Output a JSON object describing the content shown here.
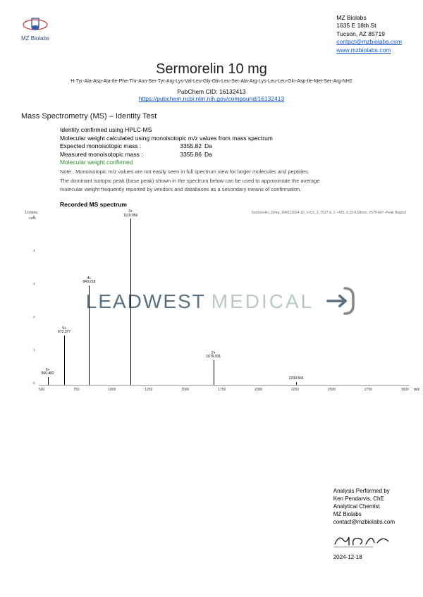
{
  "company": {
    "name": "MZ Biolabs",
    "address1": "1635 E 18th St",
    "address2": "Tucson, AZ 85719",
    "email": "contact@mzbiolabs.com",
    "website": "www.mzbiolabs.com"
  },
  "product": {
    "title": "Sermorelin 10 mg",
    "sequence": "H-Tyr-Ala-Asp-Ala-Ile-Phe-Thr-Asn-Ser-Tyr-Arg-Lys-Val-Leu-Gly-Gln-Leu-Ser-Ala-Arg-Lys-Leu-Leu-Gln-Asp-Ile-Met-Ser-Arg-NH2",
    "cid_label": "PubChem CID: 16132413",
    "cid_url": "https://pubchem.ncbi.nlm.nih.gov/compound/16132413"
  },
  "test": {
    "section": "Mass Spectrometry (MS) – Identity Test",
    "line1": "Identity confirmed using HPLC-MS",
    "line2": "Molecular weight calculated using monoisotopic m/z values from mass spectrum",
    "expected_label": "Expected monoisotopic mass :",
    "expected_value": "3355.82",
    "measured_label": "Measured monoisotopic mass :",
    "measured_value": "3355.86",
    "unit": "Da",
    "confirmed": "Molecular weight confirmed",
    "note1": "Note : Monoisotopic m/z values are not easily seen in full spectrum view for larger molecules and peptides.",
    "note2": "The dominant isotopic peak (base peak) shown in the spectrum below can be used to approximate the average",
    "note3": "molecular weight frequently reported by vendors and databases as a secondary means of confirmation."
  },
  "spectrum": {
    "title": "Recorded MS spectrum",
    "header_text": "Sermorelin_10mg_10R112024-10_V-8,5_1_7037.d, 1: +MS, 6.33-6.68min, #578-607 -Peak Bkgrnd",
    "y_label": "1.Intens.",
    "y_scale": "x106",
    "x_unit": "m/z",
    "x_min": 500,
    "x_max": 3000,
    "x_step": 250,
    "y_max": 5,
    "peaks": [
      {
        "charge": "6+",
        "mz": "560.482",
        "intensity": 0.25
      },
      {
        "charge": "5+",
        "mz": "672.377",
        "intensity": 1.5
      },
      {
        "charge": "4+",
        "mz": "840.218",
        "intensity": 3.0
      },
      {
        "charge": "3+",
        "mz": "1119.956",
        "intensity": 5.0
      },
      {
        "charge": "2+",
        "mz": "1679.931",
        "intensity": 0.75
      },
      {
        "charge": "",
        "mz": "2239.565",
        "intensity": 0.1
      }
    ],
    "plot_color": "#000000",
    "background": "#ffffff"
  },
  "watermark": {
    "word1": "LEADWEST",
    "word2": "MEDICAL"
  },
  "signoff": {
    "line1": "Analysis Performed by",
    "line2": "Ken Pendarvis, ChE",
    "line3": "Analytical Chemist",
    "line4": "MZ Biolabs",
    "line5": "contact@mzbiolabs.com",
    "date": "2024-12-18"
  }
}
